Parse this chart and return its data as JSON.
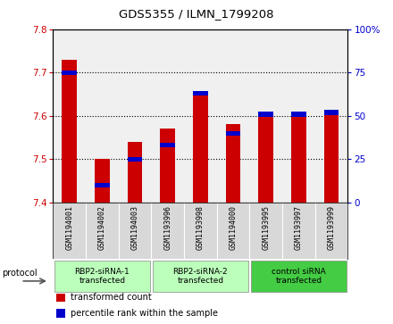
{
  "title": "GDS5355 / ILMN_1799208",
  "samples": [
    "GSM1194001",
    "GSM1194002",
    "GSM1194003",
    "GSM1193996",
    "GSM1193998",
    "GSM1194000",
    "GSM1193995",
    "GSM1193997",
    "GSM1193999"
  ],
  "red_values": [
    7.73,
    7.5,
    7.54,
    7.57,
    7.65,
    7.58,
    7.6,
    7.61,
    7.61
  ],
  "blue_values": [
    75,
    10,
    25,
    33,
    63,
    40,
    51,
    51,
    52
  ],
  "ylim_left": [
    7.4,
    7.8
  ],
  "ylim_right": [
    0,
    100
  ],
  "yticks_left": [
    7.4,
    7.5,
    7.6,
    7.7,
    7.8
  ],
  "yticks_right": [
    0,
    25,
    50,
    75,
    100
  ],
  "bar_color_red": "#cc0000",
  "bar_color_blue": "#0000cc",
  "baseline": 7.4,
  "bar_width": 0.45,
  "protocol_groups": [
    {
      "label": "RBP2-siRNA-1\ntransfected",
      "start": 0,
      "end": 3,
      "color": "#bbffbb"
    },
    {
      "label": "RBP2-siRNA-2\ntransfected",
      "start": 3,
      "end": 6,
      "color": "#bbffbb"
    },
    {
      "label": "control siRNA\ntransfected",
      "start": 6,
      "end": 9,
      "color": "#44cc44"
    }
  ],
  "tick_color_left": "#cc0000",
  "tick_color_right": "#0000cc",
  "grid_style": "dotted",
  "background_plot": "#f0f0f0",
  "blue_bar_height": 0.011
}
